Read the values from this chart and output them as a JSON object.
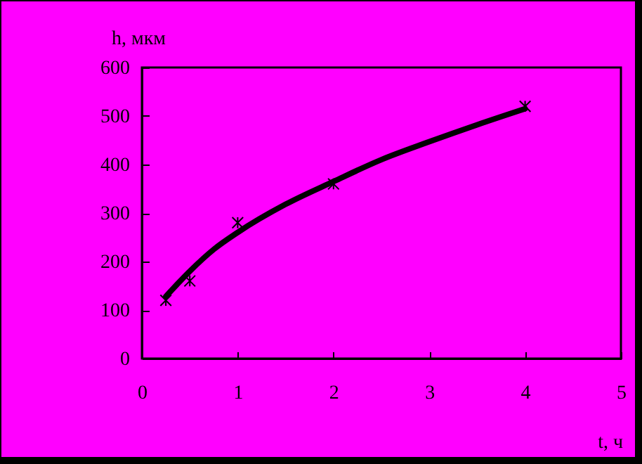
{
  "chart_data": {
    "type": "line",
    "xlabel": "t, ч",
    "ylabel": "h, мкм",
    "xlim": [
      0,
      5
    ],
    "xticks": [
      0,
      1,
      2,
      3,
      4,
      5
    ],
    "ylim": [
      0,
      600
    ],
    "yticks": [
      0,
      100,
      200,
      300,
      400,
      500,
      600
    ],
    "grid": false,
    "series": [
      {
        "type": "line",
        "color": "#000000",
        "marker": "none",
        "line_style": "solid",
        "x": [
          0.25,
          0.5,
          0.75,
          1,
          1.5,
          2,
          2.5,
          3,
          3.5,
          4
        ],
        "values": [
          128,
          180,
          225,
          260,
          318,
          365,
          410,
          447,
          482,
          515
        ]
      },
      {
        "type": "scatter",
        "color": "#000000",
        "marker": "cross",
        "x": [
          0.25,
          0.5,
          1,
          2,
          4
        ],
        "values": [
          120,
          160,
          280,
          360,
          520
        ]
      }
    ]
  }
}
